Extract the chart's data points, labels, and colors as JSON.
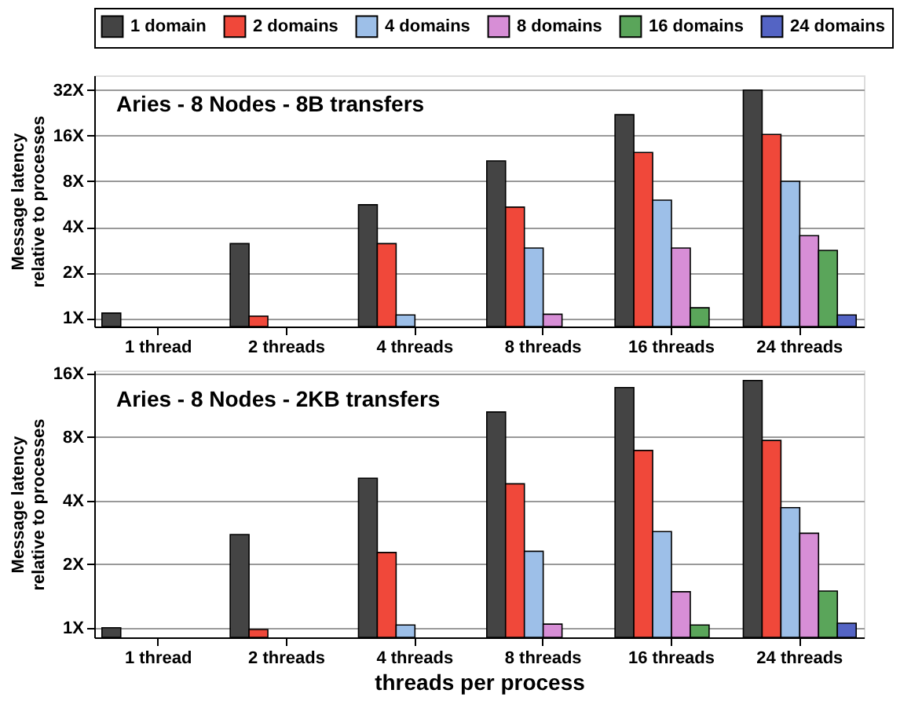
{
  "chart_data": [
    {
      "type": "bar",
      "title": "Aries - 8 Nodes - 8B transfers",
      "categories": [
        "1 thread",
        "2 threads",
        "4 threads",
        "8 threads",
        "16 threads",
        "24 threads"
      ],
      "ylabel": "Message latency\nrelative to processes",
      "log": true,
      "grid": "y",
      "legend": "top",
      "ylim": [
        0.88,
        40
      ],
      "yticks": [
        {
          "value": 1,
          "label": "1X"
        },
        {
          "value": 2,
          "label": "2X"
        },
        {
          "value": 4,
          "label": "4X"
        },
        {
          "value": 8,
          "label": "8X"
        },
        {
          "value": 16,
          "label": "16X"
        },
        {
          "value": 32,
          "label": "32X"
        }
      ],
      "series": [
        {
          "name": "1 domain",
          "color": "#444444",
          "values": [
            1.08,
            3.1,
            5.6,
            10.9,
            22,
            32
          ]
        },
        {
          "name": "2 domains",
          "color": "#f0483a",
          "values": [
            null,
            1.03,
            3.1,
            5.4,
            12.4,
            16.3
          ]
        },
        {
          "name": "4 domains",
          "color": "#9dbfe8",
          "values": [
            null,
            null,
            1.05,
            2.9,
            6.0,
            8
          ]
        },
        {
          "name": "8 domains",
          "color": "#d78ed6",
          "values": [
            null,
            null,
            null,
            1.06,
            2.9,
            3.5
          ]
        },
        {
          "name": "16 domains",
          "color": "#5aa55a",
          "values": [
            null,
            null,
            null,
            null,
            1.17,
            2.8
          ]
        },
        {
          "name": "24 domains",
          "color": "#5464c4",
          "values": [
            null,
            null,
            null,
            null,
            null,
            1.05
          ]
        }
      ]
    },
    {
      "type": "bar",
      "title": "Aries - 8 Nodes - 2KB transfers",
      "categories": [
        "1 thread",
        "2 threads",
        "4 threads",
        "8 threads",
        "16 threads",
        "24 threads"
      ],
      "xlabel": "threads per process",
      "ylabel": "Message latency\nrelative to processes",
      "log": true,
      "grid": "y",
      "ylim": [
        0.9,
        16.5
      ],
      "yticks": [
        {
          "value": 1,
          "label": "1X"
        },
        {
          "value": 2,
          "label": "2X"
        },
        {
          "value": 4,
          "label": "4X"
        },
        {
          "value": 8,
          "label": "8X"
        },
        {
          "value": 16,
          "label": "16X"
        }
      ],
      "series": [
        {
          "color": "#444444",
          "values": [
            1.0,
            2.76,
            5.1,
            10.5,
            13.7,
            14.8
          ]
        },
        {
          "color": "#f0483a",
          "values": [
            null,
            0.98,
            2.27,
            4.8,
            6.9,
            7.7
          ]
        },
        {
          "color": "#9dbfe8",
          "values": [
            null,
            null,
            1.03,
            2.3,
            2.85,
            3.7
          ]
        },
        {
          "color": "#d78ed6",
          "values": [
            null,
            null,
            null,
            1.04,
            1.48,
            2.8
          ]
        },
        {
          "color": "#5aa55a",
          "values": [
            null,
            null,
            null,
            null,
            1.03,
            1.49
          ]
        },
        {
          "color": "#5464c4",
          "values": [
            null,
            null,
            null,
            null,
            null,
            1.05
          ]
        }
      ]
    }
  ]
}
